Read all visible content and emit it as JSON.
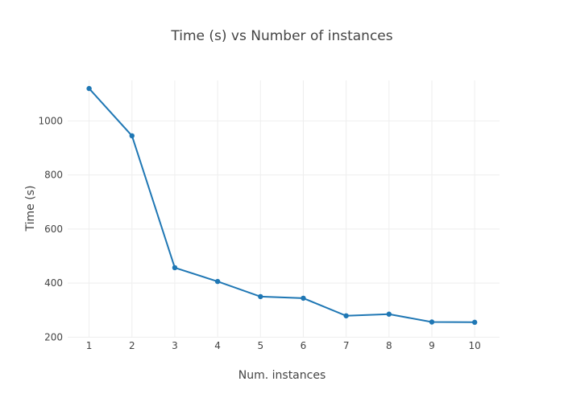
{
  "chart_data": {
    "type": "line",
    "title": "Time (s) vs Number of instances",
    "xlabel": "Num. instances",
    "ylabel": "Time (s)",
    "x": [
      1,
      2,
      3,
      4,
      5,
      6,
      7,
      8,
      9,
      10
    ],
    "x_ticks": [
      1,
      2,
      3,
      4,
      5,
      6,
      7,
      8,
      9,
      10
    ],
    "y_ticks": [
      200,
      400,
      600,
      800,
      1000
    ],
    "xlim": [
      0.5,
      10.58
    ],
    "ylim": [
      198,
      1150
    ],
    "grid": true,
    "legend": false,
    "series": [
      {
        "values": [
          1120,
          945,
          457,
          406,
          350,
          344,
          279,
          285,
          256,
          255
        ],
        "color": "#1f77b4"
      }
    ]
  }
}
